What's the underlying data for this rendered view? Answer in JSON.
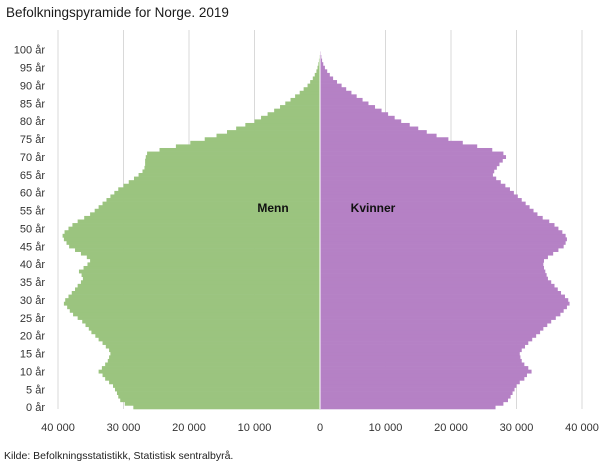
{
  "title": "Befolkningspyramide for Norge. 2019",
  "source": "Kilde: Befolkningsstatistikk, Statistisk sentralbyrå.",
  "chart_data": {
    "type": "bar",
    "orientation": "horizontal-diverging",
    "title": "Befolkningspyramide for Norge. 2019",
    "xlim": [
      -40000,
      40000
    ],
    "x_tick_values": [
      -40000,
      -30000,
      -20000,
      -10000,
      0,
      10000,
      20000,
      30000,
      40000
    ],
    "x_tick_labels": [
      "40 000",
      "30 000",
      "20 000",
      "10 000",
      "0",
      "10 000",
      "20 000",
      "30 000",
      "40 000"
    ],
    "y_tick_labels": [
      "0 år",
      "5 år",
      "10 år",
      "15 år",
      "20 år",
      "25 år",
      "30 år",
      "35 år",
      "40 år",
      "45 år",
      "50 år",
      "55 år",
      "60 år",
      "65 år",
      "70 år",
      "75 år",
      "80 år",
      "85 år",
      "90 år",
      "95 år",
      "100 år"
    ],
    "grid": true,
    "colors": {
      "men": "#9bc47f",
      "women": "#b581c5",
      "grid": "#d9d9d9"
    },
    "categories_note": "single-year ages 0-105",
    "ages": [
      0,
      1,
      2,
      3,
      4,
      5,
      6,
      7,
      8,
      9,
      10,
      11,
      12,
      13,
      14,
      15,
      16,
      17,
      18,
      19,
      20,
      21,
      22,
      23,
      24,
      25,
      26,
      27,
      28,
      29,
      30,
      31,
      32,
      33,
      34,
      35,
      36,
      37,
      38,
      39,
      40,
      41,
      42,
      43,
      44,
      45,
      46,
      47,
      48,
      49,
      50,
      51,
      52,
      53,
      54,
      55,
      56,
      57,
      58,
      59,
      60,
      61,
      62,
      63,
      64,
      65,
      66,
      67,
      68,
      69,
      70,
      71,
      72,
      73,
      74,
      75,
      76,
      77,
      78,
      79,
      80,
      81,
      82,
      83,
      84,
      85,
      86,
      87,
      88,
      89,
      90,
      91,
      92,
      93,
      94,
      95,
      96,
      97,
      98,
      99,
      100,
      101,
      102,
      103,
      104,
      105
    ],
    "series": [
      {
        "name": "Menn",
        "values": [
          28500,
          29800,
          30500,
          30800,
          31000,
          31300,
          31600,
          32200,
          32800,
          33200,
          33800,
          33300,
          32800,
          32400,
          32200,
          32000,
          32200,
          32700,
          33200,
          33800,
          34300,
          34900,
          35300,
          35800,
          36300,
          37000,
          37700,
          38200,
          38600,
          39100,
          38900,
          38400,
          37900,
          37400,
          37000,
          36500,
          36200,
          36400,
          36800,
          36100,
          35500,
          35100,
          35600,
          36500,
          37400,
          38300,
          38700,
          39100,
          39300,
          39000,
          38400,
          37800,
          37000,
          36000,
          35100,
          34400,
          33800,
          33200,
          32600,
          32000,
          31400,
          30800,
          30000,
          29200,
          28400,
          27700,
          27100,
          26800,
          26700,
          26700,
          26600,
          26400,
          24500,
          22000,
          19800,
          17600,
          15800,
          14200,
          12800,
          11400,
          10000,
          9000,
          8000,
          7000,
          6100,
          5300,
          4500,
          3800,
          3100,
          2500,
          1900,
          1500,
          1100,
          800,
          550,
          380,
          250,
          160,
          100,
          60,
          35,
          20,
          10,
          5,
          3,
          1
        ]
      },
      {
        "name": "Kvinner",
        "values": [
          26800,
          28000,
          28700,
          29100,
          29400,
          29700,
          30000,
          30500,
          31200,
          31600,
          32300,
          31800,
          31200,
          30800,
          30600,
          30500,
          30800,
          31300,
          31800,
          32400,
          33000,
          33600,
          34100,
          34700,
          35300,
          36000,
          36700,
          37200,
          37700,
          38100,
          37900,
          37400,
          36800,
          36300,
          35800,
          35300,
          34800,
          34600,
          34400,
          34200,
          34100,
          34200,
          34800,
          35600,
          36400,
          37200,
          37500,
          37700,
          37500,
          37000,
          36400,
          35800,
          35000,
          34000,
          33200,
          32600,
          32000,
          31400,
          30800,
          30200,
          29600,
          29000,
          28300,
          27600,
          26900,
          26400,
          26600,
          27000,
          27400,
          27900,
          28400,
          28000,
          26300,
          24000,
          21800,
          19600,
          17800,
          16300,
          15000,
          13700,
          12400,
          11400,
          10400,
          9400,
          8400,
          7400,
          6500,
          5600,
          4800,
          4000,
          3300,
          2600,
          2000,
          1500,
          1100,
          750,
          500,
          320,
          200,
          120,
          70,
          40,
          20,
          10,
          5,
          2
        ]
      }
    ],
    "annotations": [
      "Menn",
      "Kvinner"
    ]
  }
}
